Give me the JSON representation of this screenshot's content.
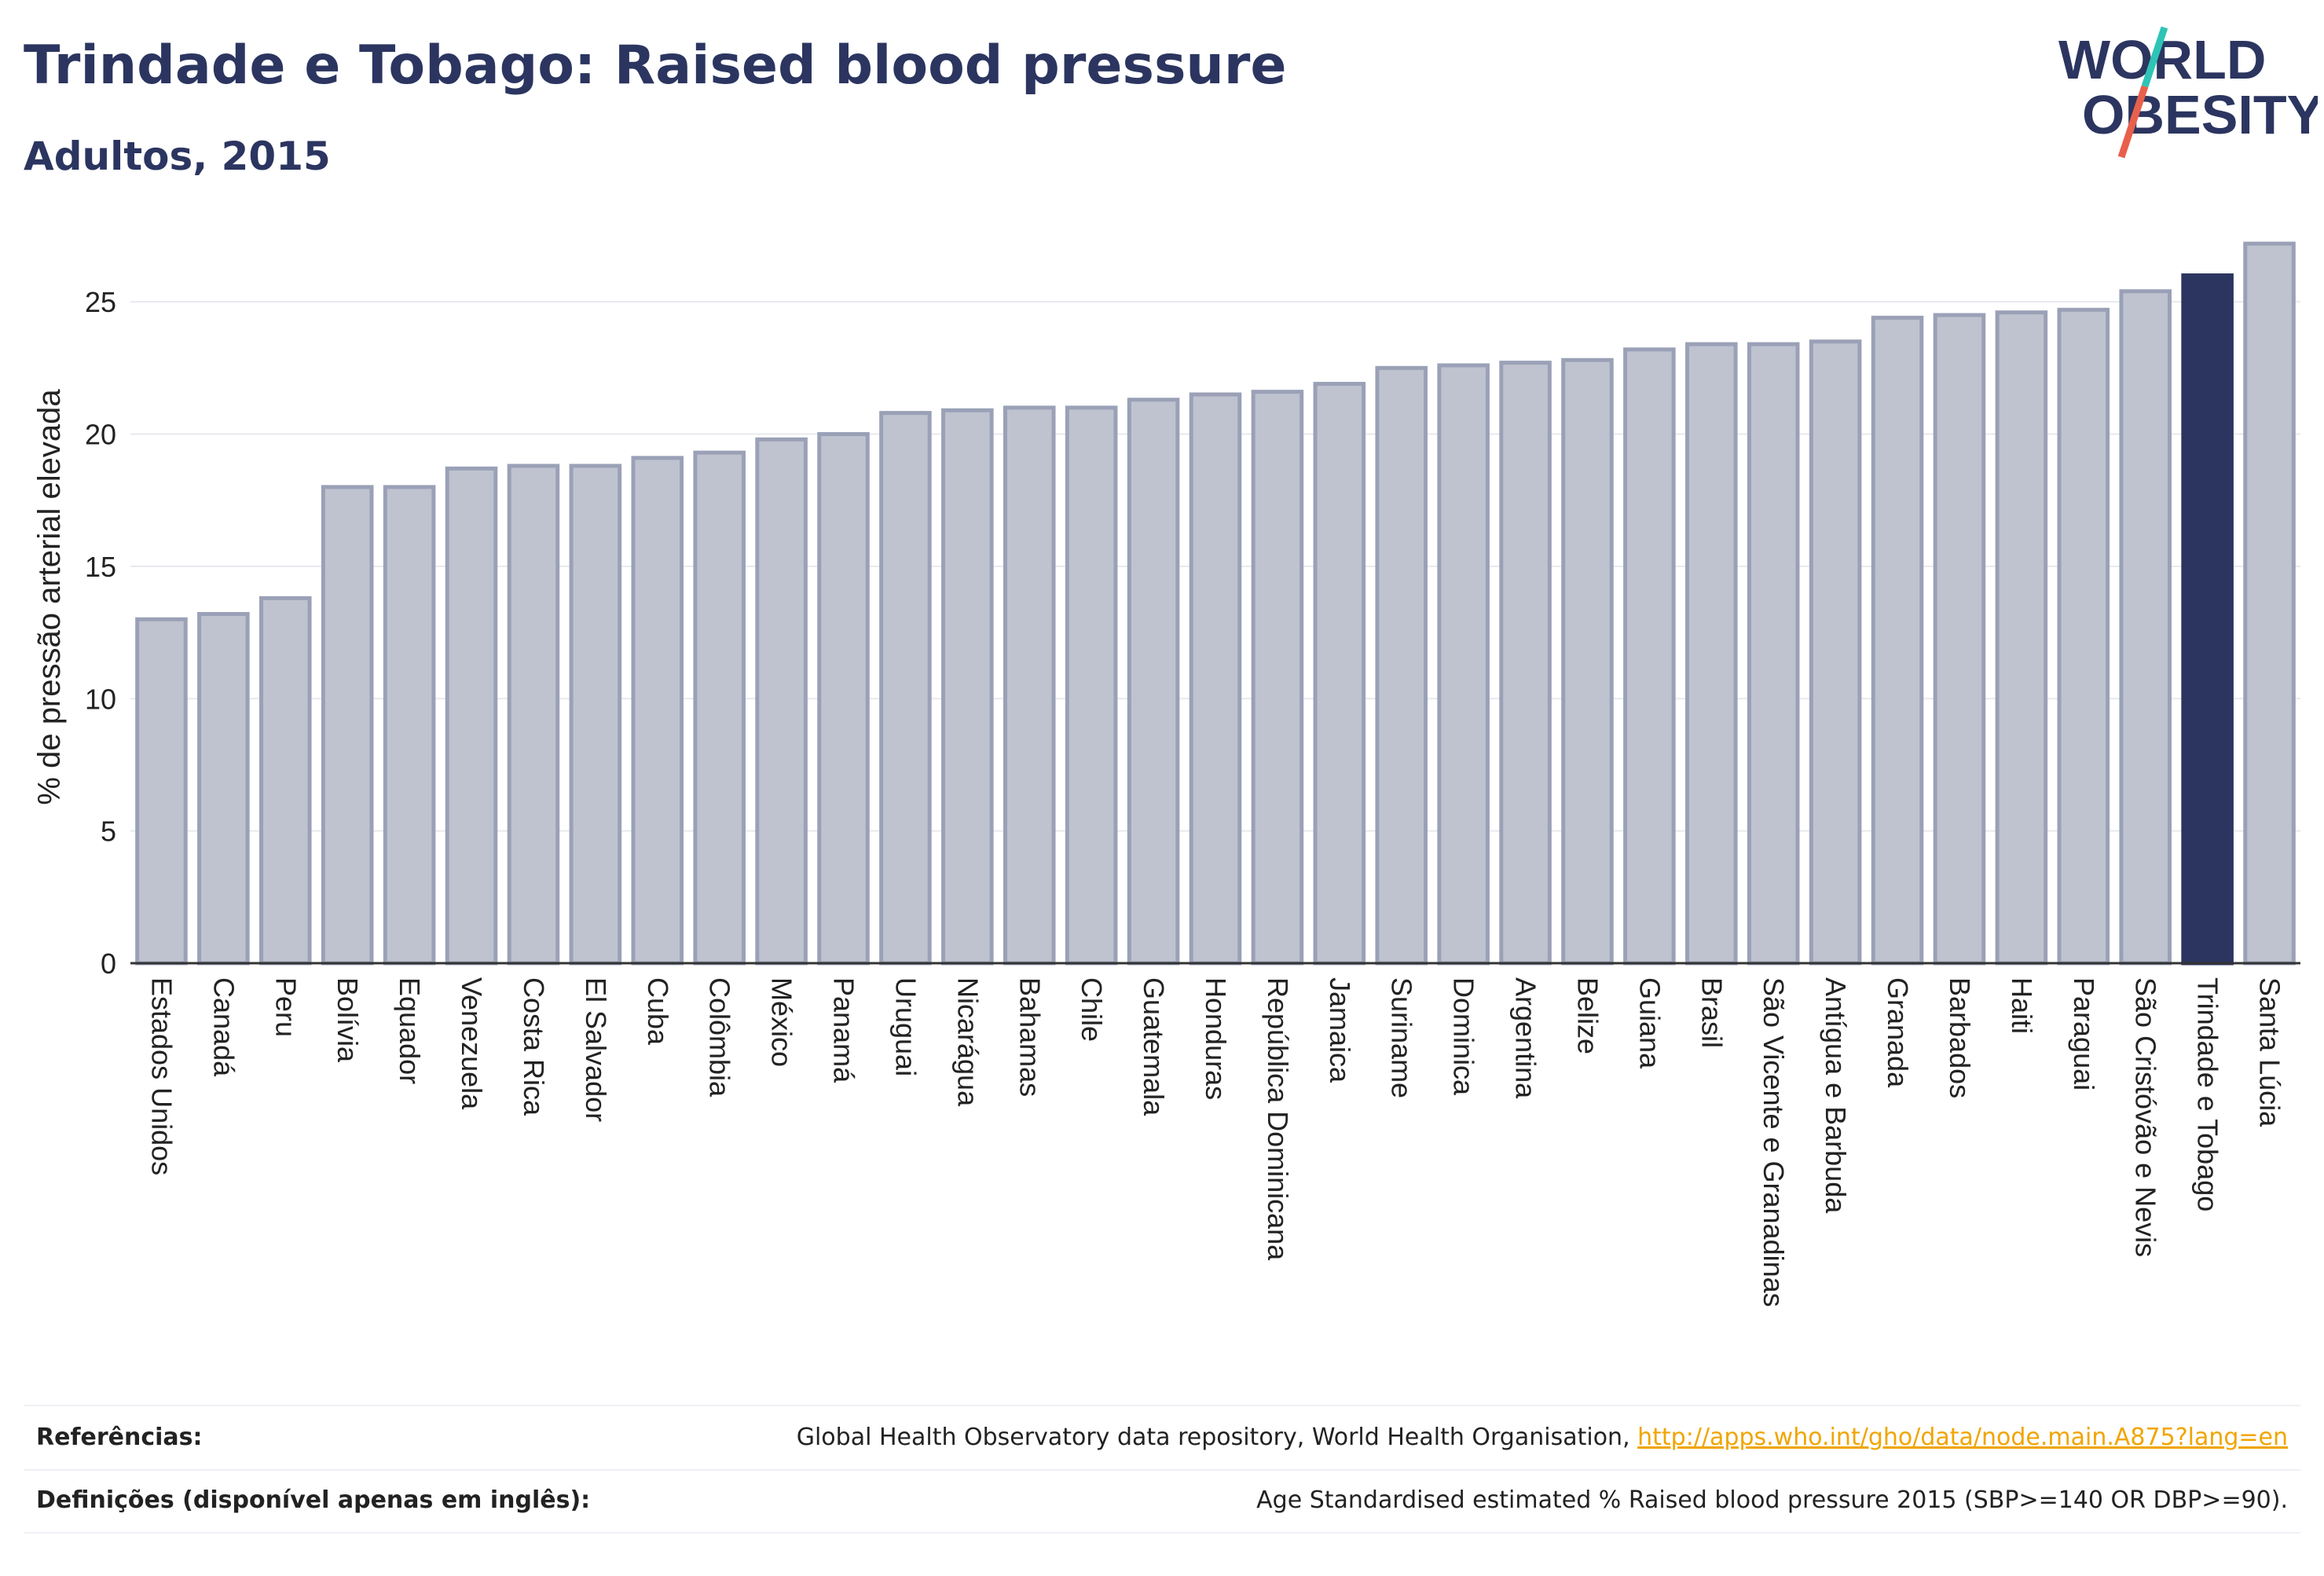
{
  "header": {
    "title": "Trindade e Tobago: Raised blood pressure",
    "subtitle": "Adultos, 2015"
  },
  "logo": {
    "line1": "WORLD",
    "line2": "OBESITY"
  },
  "colors": {
    "bar_fill": "#bfc3cf",
    "bar_stroke": "#9aa1b7",
    "highlight": "#2b3560",
    "grid": "#e8e9ee",
    "logo_text": "#2b3560",
    "logo_slash_teal": "#2ec4b6",
    "logo_slash_red": "#e8604c",
    "link": "#f0a500"
  },
  "chart_data": {
    "type": "bar",
    "ylabel": "% de pressão arterial elevada",
    "xlabel": "",
    "ylim": [
      0,
      27.5
    ],
    "yticks": [
      0,
      5,
      10,
      15,
      20,
      25
    ],
    "highlight": "Trindade e Tobago",
    "grid": true,
    "categories": [
      "Estados Unidos",
      "Canadá",
      "Peru",
      "Bolívia",
      "Equador",
      "Venezuela",
      "Costa Rica",
      "El Salvador",
      "Cuba",
      "Colômbia",
      "México",
      "Panamá",
      "Uruguai",
      "Nicarágua",
      "Bahamas",
      "Chile",
      "Guatemala",
      "Honduras",
      "República Dominicana",
      "Jamaica",
      "Suriname",
      "Dominica",
      "Argentina",
      "Belize",
      "Guiana",
      "Brasil",
      "São Vicente e Granadinas",
      "Antígua e Barbuda",
      "Granada",
      "Barbados",
      "Haiti",
      "Paraguai",
      "São Cristóvão e Nevis",
      "Trindade e Tobago",
      "Santa Lúcia"
    ],
    "values": [
      13.0,
      13.2,
      13.8,
      18.0,
      18.0,
      18.7,
      18.8,
      18.8,
      19.1,
      19.3,
      19.8,
      20.0,
      20.8,
      20.9,
      21.0,
      21.0,
      21.3,
      21.5,
      21.6,
      21.9,
      22.5,
      22.6,
      22.7,
      22.8,
      23.2,
      23.4,
      23.4,
      23.5,
      24.4,
      24.5,
      24.6,
      24.7,
      25.4,
      26.0,
      27.2
    ]
  },
  "footer": {
    "references_label": "Referências:",
    "references_text": "Global Health Observatory data repository, World Health Organisation, ",
    "references_link": "http://apps.who.int/gho/data/node.main.A875?lang=en",
    "definitions_label": "Definições (disponível apenas em inglês):",
    "definitions_text": "Age Standardised estimated % Raised blood pressure 2015 (SBP>=140 OR DBP>=90)."
  }
}
